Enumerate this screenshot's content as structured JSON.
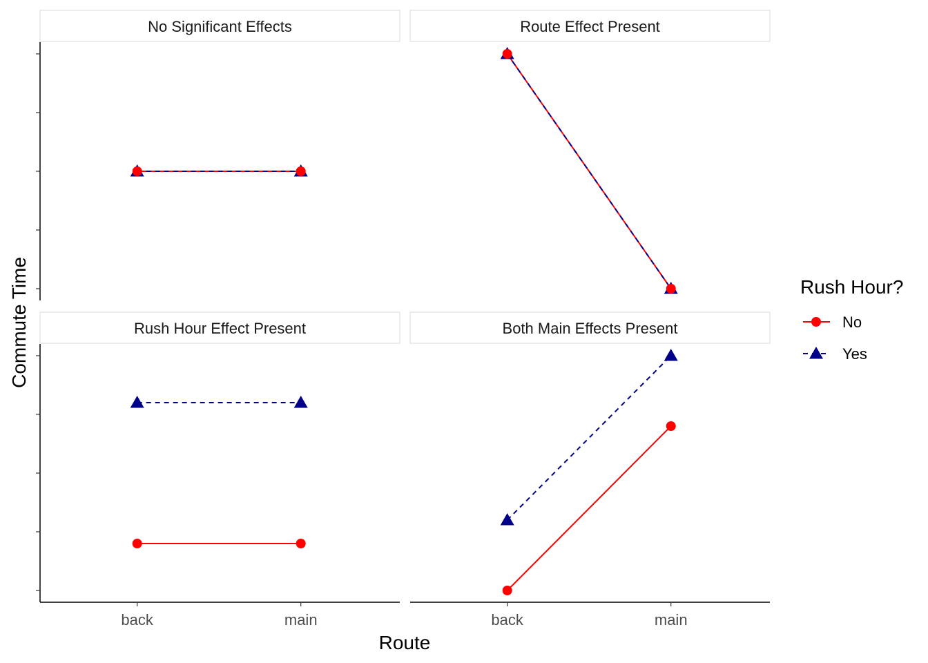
{
  "chart_data": {
    "type": "line",
    "xlabel": "Route",
    "ylabel": "Commute Time",
    "categories": [
      "back",
      "main"
    ],
    "ylim": [
      0.8,
      5.2
    ],
    "y_tick_labels_shown": false,
    "grid": false,
    "legend": {
      "title": "Rush Hour?",
      "position": "right",
      "entries": [
        {
          "label": "No",
          "color": "#ff0000",
          "shape": "circle",
          "linetype": "solid"
        },
        {
          "label": "Yes",
          "color": "#00008b",
          "shape": "triangle",
          "linetype": "dashed"
        }
      ]
    },
    "panels": [
      {
        "title": "No Significant Effects",
        "series": [
          {
            "name": "No",
            "values": [
              3,
              3
            ]
          },
          {
            "name": "Yes",
            "values": [
              3,
              3
            ]
          }
        ]
      },
      {
        "title": "Route Effect Present",
        "series": [
          {
            "name": "No",
            "values": [
              5,
              1
            ]
          },
          {
            "name": "Yes",
            "values": [
              5,
              1
            ]
          }
        ]
      },
      {
        "title": "Rush Hour Effect Present",
        "series": [
          {
            "name": "No",
            "values": [
              1.8,
              1.8
            ]
          },
          {
            "name": "Yes",
            "values": [
              4.2,
              4.2
            ]
          }
        ]
      },
      {
        "title": "Both Main Effects Present",
        "series": [
          {
            "name": "No",
            "values": [
              1,
              3.8
            ]
          },
          {
            "name": "Yes",
            "values": [
              2.2,
              5
            ]
          }
        ]
      }
    ]
  }
}
